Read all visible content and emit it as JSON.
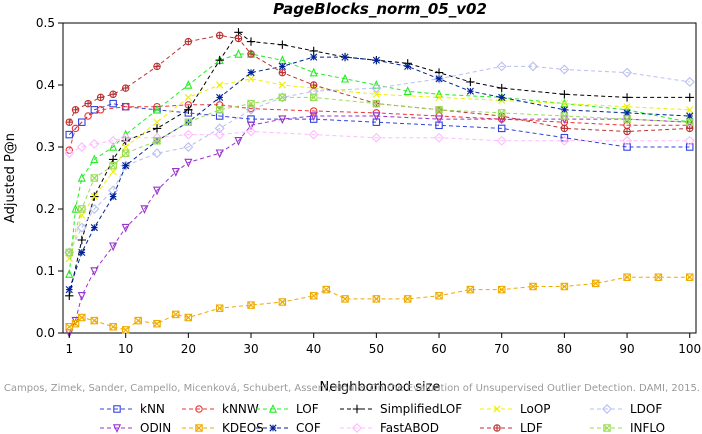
{
  "chart_data": {
    "type": "line",
    "title": "PageBlocks_norm_05_v02",
    "xlabel": "Neighborhood size",
    "ylabel": "Adjusted P@n",
    "xlim": [
      0,
      101
    ],
    "ylim": [
      0,
      0.5
    ],
    "xticks": [
      1,
      10,
      20,
      30,
      40,
      50,
      60,
      70,
      80,
      90,
      100
    ],
    "yticks": [
      0.0,
      0.1,
      0.2,
      0.3,
      0.4,
      0.5
    ],
    "grid": false,
    "legend_position": "bottom",
    "watermark": "Campos, Zimek, Sander, Campello, Micenková, Schubert, Assent, Houle: On the Evaluation of Unsupervised Outlier Detection. DAMI, 2015.",
    "series": [
      {
        "name": "kNN",
        "color": "#3344dd",
        "marker": "square",
        "dash": "4,3",
        "points": [
          [
            1,
            0.32
          ],
          [
            3,
            0.34
          ],
          [
            5,
            0.36
          ],
          [
            8,
            0.37
          ],
          [
            10,
            0.365
          ],
          [
            15,
            0.36
          ],
          [
            20,
            0.355
          ],
          [
            25,
            0.35
          ],
          [
            30,
            0.345
          ],
          [
            40,
            0.345
          ],
          [
            50,
            0.34
          ],
          [
            60,
            0.335
          ],
          [
            70,
            0.33
          ],
          [
            80,
            0.315
          ],
          [
            90,
            0.3
          ],
          [
            100,
            0.3
          ]
        ]
      },
      {
        "name": "kNNW",
        "color": "#ee3333",
        "marker": "circle",
        "dash": "4,3",
        "points": [
          [
            1,
            0.295
          ],
          [
            2,
            0.33
          ],
          [
            4,
            0.35
          ],
          [
            6,
            0.36
          ],
          [
            10,
            0.365
          ],
          [
            15,
            0.365
          ],
          [
            20,
            0.368
          ],
          [
            25,
            0.368
          ],
          [
            30,
            0.362
          ],
          [
            40,
            0.358
          ],
          [
            50,
            0.355
          ],
          [
            60,
            0.35
          ],
          [
            70,
            0.345
          ],
          [
            80,
            0.34
          ],
          [
            90,
            0.335
          ],
          [
            100,
            0.335
          ]
        ]
      },
      {
        "name": "LOF",
        "color": "#22ee22",
        "marker": "triangle-up",
        "dash": "4,3",
        "points": [
          [
            1,
            0.095
          ],
          [
            2,
            0.2
          ],
          [
            3,
            0.25
          ],
          [
            5,
            0.28
          ],
          [
            8,
            0.3
          ],
          [
            10,
            0.32
          ],
          [
            15,
            0.36
          ],
          [
            20,
            0.4
          ],
          [
            25,
            0.44
          ],
          [
            28,
            0.45
          ],
          [
            30,
            0.45
          ],
          [
            35,
            0.44
          ],
          [
            40,
            0.42
          ],
          [
            45,
            0.41
          ],
          [
            50,
            0.4
          ],
          [
            55,
            0.39
          ],
          [
            60,
            0.385
          ],
          [
            70,
            0.38
          ],
          [
            80,
            0.37
          ],
          [
            90,
            0.36
          ],
          [
            100,
            0.34
          ]
        ]
      },
      {
        "name": "SimplifiedLOF",
        "color": "#000000",
        "marker": "plus",
        "dash": "4,3",
        "points": [
          [
            1,
            0.06
          ],
          [
            3,
            0.15
          ],
          [
            5,
            0.22
          ],
          [
            8,
            0.28
          ],
          [
            10,
            0.31
          ],
          [
            15,
            0.33
          ],
          [
            20,
            0.36
          ],
          [
            25,
            0.44
          ],
          [
            28,
            0.485
          ],
          [
            30,
            0.47
          ],
          [
            35,
            0.465
          ],
          [
            40,
            0.455
          ],
          [
            45,
            0.445
          ],
          [
            50,
            0.44
          ],
          [
            55,
            0.435
          ],
          [
            60,
            0.42
          ],
          [
            65,
            0.405
          ],
          [
            70,
            0.395
          ],
          [
            80,
            0.385
          ],
          [
            90,
            0.38
          ],
          [
            100,
            0.38
          ]
        ]
      },
      {
        "name": "LoOP",
        "color": "#eeee00",
        "marker": "x",
        "dash": "4,3",
        "points": [
          [
            1,
            0.12
          ],
          [
            3,
            0.19
          ],
          [
            5,
            0.22
          ],
          [
            8,
            0.26
          ],
          [
            10,
            0.3
          ],
          [
            15,
            0.34
          ],
          [
            20,
            0.38
          ],
          [
            25,
            0.4
          ],
          [
            30,
            0.41
          ],
          [
            35,
            0.4
          ],
          [
            40,
            0.395
          ],
          [
            50,
            0.385
          ],
          [
            60,
            0.38
          ],
          [
            70,
            0.375
          ],
          [
            80,
            0.37
          ],
          [
            90,
            0.365
          ],
          [
            100,
            0.36
          ]
        ]
      },
      {
        "name": "LDOF",
        "color": "#b8bff0",
        "marker": "diamond",
        "dash": "4,3",
        "points": [
          [
            1,
            0.13
          ],
          [
            3,
            0.17
          ],
          [
            5,
            0.2
          ],
          [
            8,
            0.23
          ],
          [
            10,
            0.27
          ],
          [
            15,
            0.29
          ],
          [
            20,
            0.3
          ],
          [
            25,
            0.33
          ],
          [
            30,
            0.36
          ],
          [
            35,
            0.38
          ],
          [
            40,
            0.39
          ],
          [
            50,
            0.395
          ],
          [
            60,
            0.41
          ],
          [
            70,
            0.43
          ],
          [
            75,
            0.43
          ],
          [
            80,
            0.425
          ],
          [
            90,
            0.42
          ],
          [
            100,
            0.405
          ]
        ]
      },
      {
        "name": "ODIN",
        "color": "#9933cc",
        "marker": "triangle-down",
        "dash": "4,3",
        "points": [
          [
            1,
            0.0
          ],
          [
            2,
            0.02
          ],
          [
            3,
            0.06
          ],
          [
            5,
            0.1
          ],
          [
            8,
            0.14
          ],
          [
            10,
            0.17
          ],
          [
            13,
            0.2
          ],
          [
            15,
            0.23
          ],
          [
            18,
            0.26
          ],
          [
            20,
            0.275
          ],
          [
            25,
            0.29
          ],
          [
            28,
            0.31
          ],
          [
            30,
            0.335
          ],
          [
            35,
            0.345
          ],
          [
            40,
            0.35
          ],
          [
            50,
            0.35
          ],
          [
            60,
            0.345
          ],
          [
            70,
            0.345
          ],
          [
            80,
            0.345
          ],
          [
            90,
            0.345
          ],
          [
            100,
            0.34
          ]
        ]
      },
      {
        "name": "KDEOS",
        "color": "#eeaa00",
        "marker": "square-x",
        "dash": "4,3",
        "points": [
          [
            1,
            0.01
          ],
          [
            2,
            0.015
          ],
          [
            3,
            0.025
          ],
          [
            5,
            0.02
          ],
          [
            8,
            0.01
          ],
          [
            10,
            0.005
          ],
          [
            12,
            0.02
          ],
          [
            15,
            0.015
          ],
          [
            18,
            0.03
          ],
          [
            20,
            0.025
          ],
          [
            25,
            0.04
          ],
          [
            30,
            0.045
          ],
          [
            35,
            0.05
          ],
          [
            40,
            0.06
          ],
          [
            42,
            0.07
          ],
          [
            45,
            0.055
          ],
          [
            50,
            0.055
          ],
          [
            55,
            0.055
          ],
          [
            60,
            0.06
          ],
          [
            65,
            0.07
          ],
          [
            70,
            0.07
          ],
          [
            75,
            0.075
          ],
          [
            80,
            0.075
          ],
          [
            85,
            0.08
          ],
          [
            90,
            0.09
          ],
          [
            95,
            0.09
          ],
          [
            100,
            0.09
          ]
        ]
      },
      {
        "name": "COF",
        "color": "#002299",
        "marker": "asterisk",
        "dash": "4,3",
        "points": [
          [
            1,
            0.07
          ],
          [
            3,
            0.13
          ],
          [
            5,
            0.17
          ],
          [
            8,
            0.22
          ],
          [
            10,
            0.27
          ],
          [
            15,
            0.31
          ],
          [
            20,
            0.34
          ],
          [
            25,
            0.38
          ],
          [
            30,
            0.42
          ],
          [
            35,
            0.43
          ],
          [
            40,
            0.445
          ],
          [
            45,
            0.445
          ],
          [
            50,
            0.44
          ],
          [
            55,
            0.43
          ],
          [
            60,
            0.41
          ],
          [
            65,
            0.39
          ],
          [
            70,
            0.38
          ],
          [
            80,
            0.36
          ],
          [
            90,
            0.355
          ],
          [
            100,
            0.35
          ]
        ]
      },
      {
        "name": "FastABOD",
        "color": "#ffbbff",
        "marker": "diamond",
        "dash": "4,3",
        "points": [
          [
            1,
            0.29
          ],
          [
            3,
            0.3
          ],
          [
            5,
            0.305
          ],
          [
            8,
            0.31
          ],
          [
            10,
            0.315
          ],
          [
            15,
            0.315
          ],
          [
            20,
            0.32
          ],
          [
            25,
            0.32
          ],
          [
            30,
            0.325
          ],
          [
            40,
            0.32
          ],
          [
            50,
            0.315
          ],
          [
            60,
            0.315
          ],
          [
            70,
            0.31
          ],
          [
            80,
            0.31
          ],
          [
            90,
            0.31
          ],
          [
            100,
            0.31
          ]
        ]
      },
      {
        "name": "LDF",
        "color": "#bb3333",
        "marker": "circle-plus",
        "dash": "4,3",
        "points": [
          [
            1,
            0.34
          ],
          [
            2,
            0.36
          ],
          [
            4,
            0.37
          ],
          [
            6,
            0.38
          ],
          [
            8,
            0.385
          ],
          [
            10,
            0.395
          ],
          [
            15,
            0.43
          ],
          [
            20,
            0.47
          ],
          [
            25,
            0.48
          ],
          [
            28,
            0.475
          ],
          [
            30,
            0.45
          ],
          [
            35,
            0.42
          ],
          [
            40,
            0.4
          ],
          [
            50,
            0.37
          ],
          [
            60,
            0.36
          ],
          [
            70,
            0.35
          ],
          [
            80,
            0.33
          ],
          [
            90,
            0.325
          ],
          [
            100,
            0.33
          ]
        ]
      },
      {
        "name": "INFLO",
        "color": "#99dd55",
        "marker": "square-x",
        "dash": "4,3",
        "points": [
          [
            1,
            0.13
          ],
          [
            3,
            0.2
          ],
          [
            5,
            0.25
          ],
          [
            8,
            0.27
          ],
          [
            10,
            0.29
          ],
          [
            15,
            0.31
          ],
          [
            20,
            0.34
          ],
          [
            25,
            0.36
          ],
          [
            30,
            0.37
          ],
          [
            35,
            0.38
          ],
          [
            40,
            0.38
          ],
          [
            50,
            0.37
          ],
          [
            60,
            0.36
          ],
          [
            70,
            0.355
          ],
          [
            80,
            0.35
          ],
          [
            90,
            0.345
          ],
          [
            100,
            0.34
          ]
        ]
      }
    ]
  }
}
